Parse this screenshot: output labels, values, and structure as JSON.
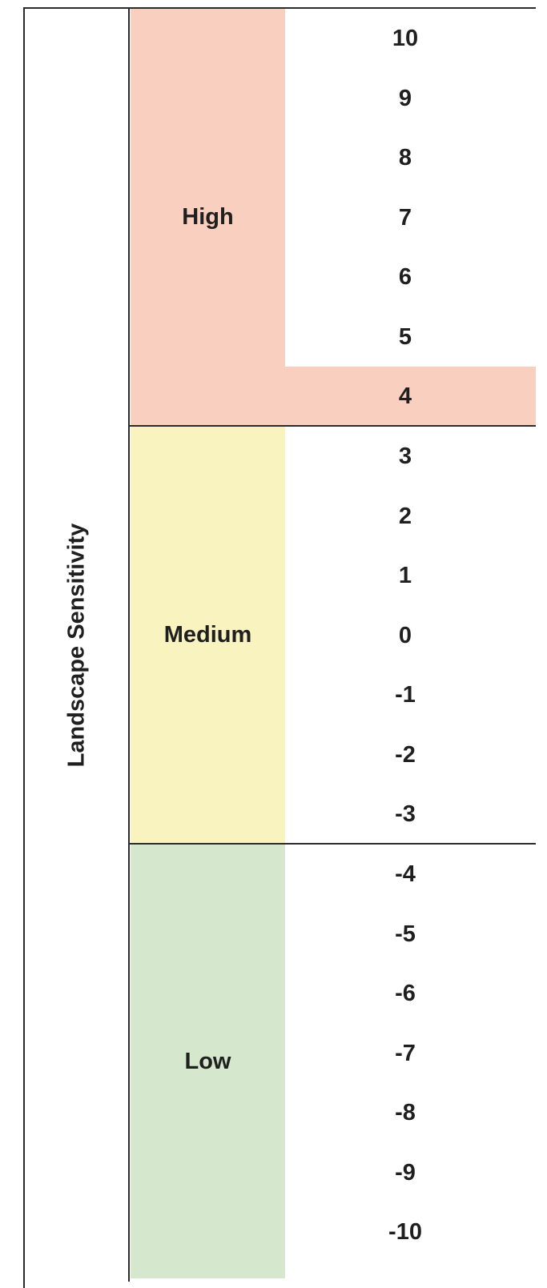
{
  "title": "Landscape Sensitivity",
  "colors": {
    "high": "#f9cfc0",
    "medium": "#f9f3c0",
    "low": "#d5e8cd",
    "border": "#2b2b2b",
    "text": "#1f1f1f"
  },
  "bands": [
    {
      "label": "High",
      "color_key": "high",
      "scores": [
        "10",
        "9",
        "8",
        "7",
        "6",
        "5",
        "4"
      ]
    },
    {
      "label": "Medium",
      "color_key": "medium",
      "scores": [
        "3",
        "2",
        "1",
        "0",
        "-1",
        "-2",
        "-3"
      ]
    },
    {
      "label": "Low",
      "color_key": "low",
      "scores": [
        "-4",
        "-5",
        "-6",
        "-7",
        "-8",
        "-9",
        "-10"
      ]
    }
  ]
}
